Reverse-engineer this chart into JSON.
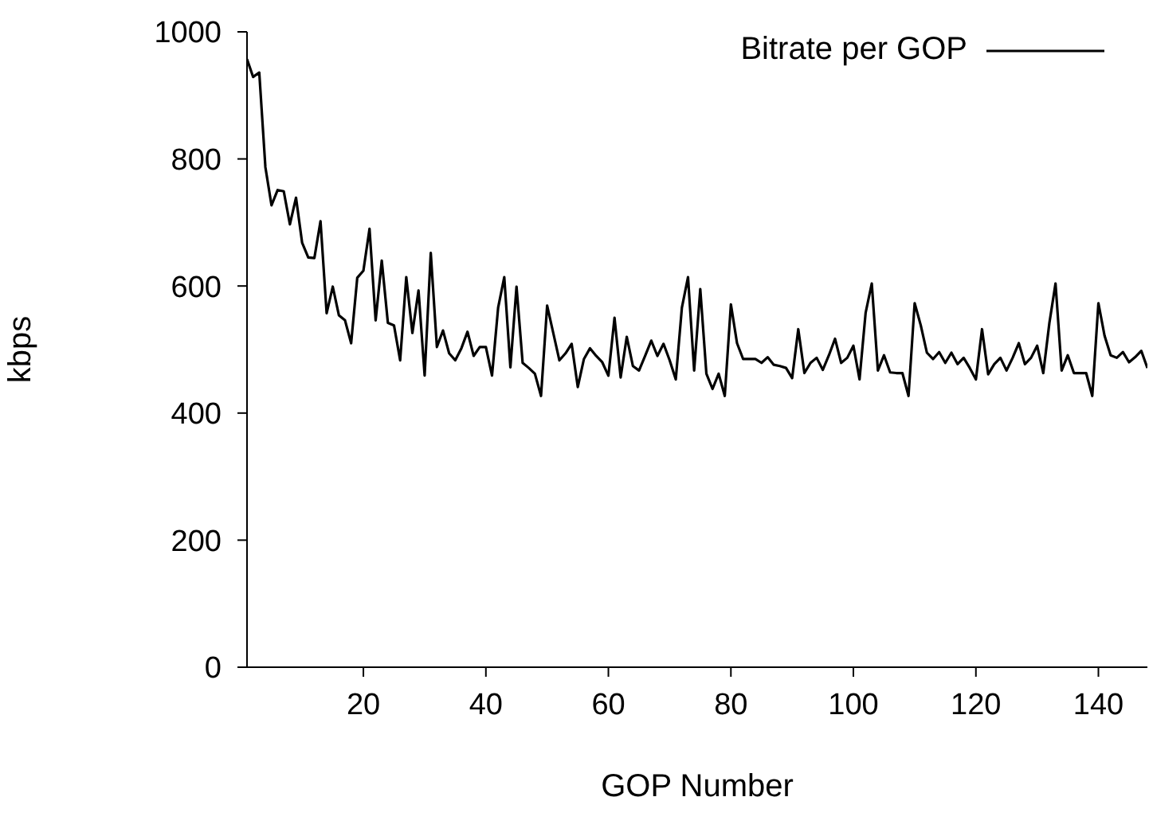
{
  "chart_data": {
    "type": "line",
    "xlabel": "GOP Number",
    "ylabel": "kbps",
    "x": [
      1,
      2,
      3,
      4,
      5,
      6,
      7,
      8,
      9,
      10,
      11,
      12,
      13,
      14,
      15,
      16,
      17,
      18,
      19,
      20,
      21,
      22,
      23,
      24,
      25,
      26,
      27,
      28,
      29,
      30,
      31,
      32,
      33,
      34,
      35,
      36,
      37,
      38,
      39,
      40,
      41,
      42,
      43,
      44,
      45,
      46,
      47,
      48,
      49,
      50,
      51,
      52,
      53,
      54,
      55,
      56,
      57,
      58,
      59,
      60,
      61,
      62,
      63,
      64,
      65,
      66,
      67,
      68,
      69,
      70,
      71,
      72,
      73,
      74,
      75,
      76,
      77,
      78,
      79,
      80,
      81,
      82,
      83,
      84,
      85,
      86,
      87,
      88,
      89,
      90,
      91,
      92,
      93,
      94,
      95,
      96,
      97,
      98,
      99,
      100,
      101,
      102,
      103,
      104,
      105,
      106,
      107,
      108,
      109,
      110,
      111,
      112,
      113,
      114,
      115,
      116,
      117,
      118,
      119,
      120,
      121,
      122,
      123,
      124,
      125,
      126,
      127,
      128,
      129,
      130,
      131,
      132,
      133,
      134,
      135,
      136,
      137,
      138,
      139,
      140,
      141,
      142,
      143,
      144,
      145,
      146,
      147,
      148
    ],
    "series": [
      {
        "name": "Bitrate per GOP",
        "color": "#000000",
        "values": [
          957,
          929,
          936,
          787,
          727,
          751,
          749,
          697,
          739,
          668,
          645,
          644,
          702,
          557,
          599,
          554,
          546,
          510,
          613,
          624,
          690,
          546,
          640,
          542,
          538,
          483,
          614,
          526,
          593,
          459,
          652,
          504,
          530,
          494,
          483,
          502,
          528,
          490,
          504,
          504,
          459,
          566,
          614,
          472,
          599,
          479,
          471,
          462,
          427,
          569,
          526,
          483,
          494,
          509,
          441,
          485,
          502,
          490,
          480,
          459,
          550,
          456,
          520,
          474,
          467,
          490,
          514,
          490,
          509,
          483,
          453,
          566,
          614,
          467,
          595,
          462,
          438,
          462,
          427,
          571,
          510,
          485,
          485,
          485,
          479,
          488,
          476,
          474,
          471,
          455,
          532,
          463,
          479,
          487,
          468,
          491,
          517,
          479,
          487,
          506,
          453,
          558,
          604,
          467,
          491,
          464,
          463,
          463,
          427,
          573,
          538,
          495,
          485,
          496,
          479,
          495,
          477,
          487,
          471,
          453,
          532,
          461,
          477,
          487,
          467,
          487,
          510,
          477,
          487,
          506,
          463,
          542,
          604,
          467,
          491,
          463,
          463,
          463,
          427,
          573,
          522,
          491,
          487,
          496,
          480,
          488,
          498,
          471
        ]
      }
    ],
    "xlim": [
      1,
      148
    ],
    "xticks": [
      20,
      40,
      60,
      80,
      100,
      120,
      140
    ],
    "ylim": [
      0,
      1000
    ],
    "yticks": [
      0,
      200,
      400,
      600,
      800,
      1000
    ],
    "grid": false,
    "legend": "top right",
    "marker": "none",
    "line_style": "solid"
  }
}
